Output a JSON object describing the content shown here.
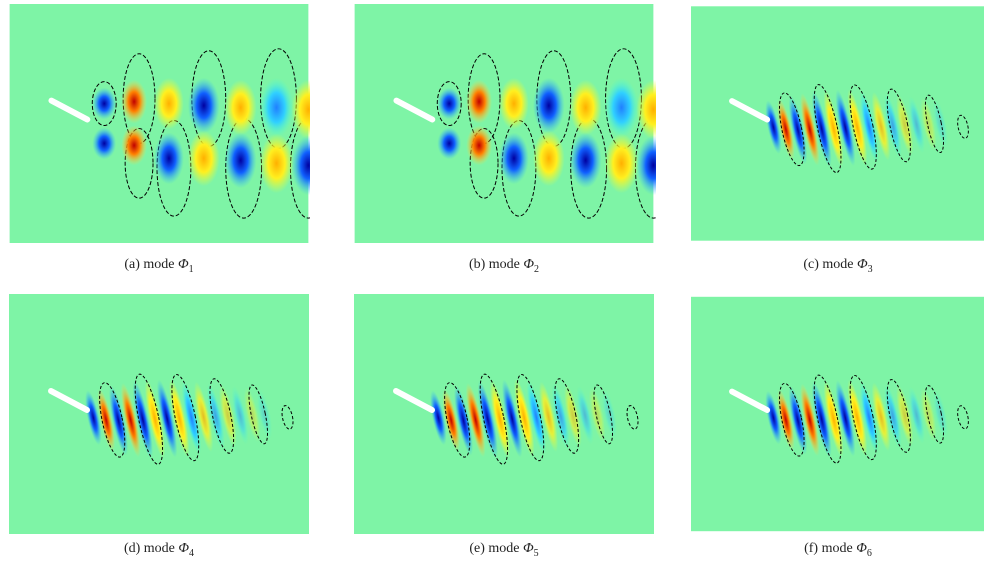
{
  "panels": [
    {
      "label": "(a)",
      "word": "mode",
      "symbol": "Φ",
      "index": "1"
    },
    {
      "label": "(b)",
      "word": "mode",
      "symbol": "Φ",
      "index": "2"
    },
    {
      "label": "(c)",
      "word": "mode",
      "symbol": "Φ",
      "index": "3"
    },
    {
      "label": "(d)",
      "word": "mode",
      "symbol": "Φ",
      "index": "4"
    },
    {
      "label": "(e)",
      "word": "mode",
      "symbol": "Φ",
      "index": "5"
    },
    {
      "label": "(f)",
      "word": "mode",
      "symbol": "Φ",
      "index": "6"
    }
  ]
}
